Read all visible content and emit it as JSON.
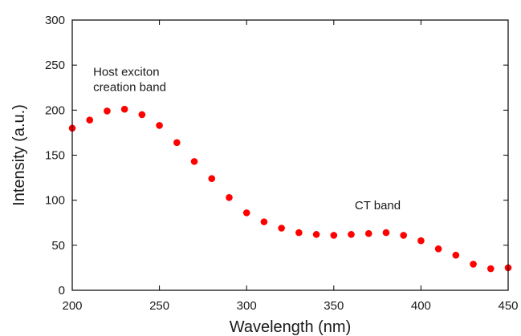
{
  "chart_data": {
    "type": "scatter",
    "title": "",
    "xlabel": "Wavelength (nm)",
    "ylabel": "Intensity (a.u.)",
    "xlim": [
      200,
      450
    ],
    "ylim": [
      0,
      300
    ],
    "x_ticks": [
      200,
      250,
      300,
      350,
      400,
      450
    ],
    "y_ticks": [
      0,
      50,
      100,
      150,
      200,
      250,
      300
    ],
    "grid": false,
    "marker_color": "#ff0000",
    "x": [
      200,
      210,
      220,
      230,
      240,
      250,
      260,
      270,
      280,
      290,
      300,
      310,
      320,
      330,
      340,
      350,
      360,
      370,
      380,
      390,
      400,
      410,
      420,
      430,
      440,
      450
    ],
    "y": [
      180,
      189,
      199,
      201,
      195,
      183,
      164,
      143,
      124,
      103,
      86,
      76,
      69,
      64,
      62,
      61,
      62,
      63,
      64,
      61,
      55,
      46,
      39,
      29,
      24,
      25
    ],
    "annotations": [
      {
        "lines": [
          "Host exciton",
          "creation band"
        ],
        "x": 212,
        "y": 238
      },
      {
        "lines": [
          "CT band"
        ],
        "x": 362,
        "y": 90
      }
    ]
  }
}
